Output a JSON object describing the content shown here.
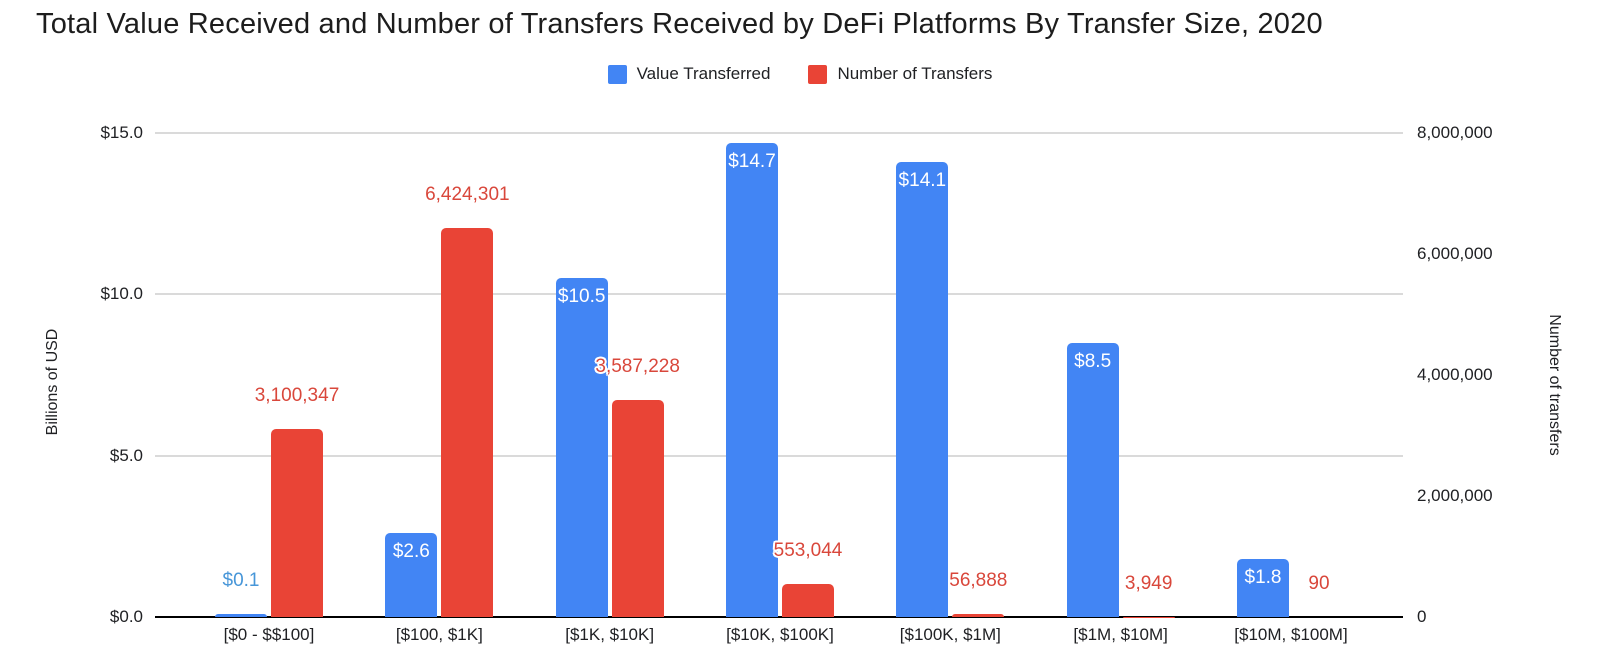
{
  "title": "Total Value Received and Number of Transfers Received by DeFi Platforms By Transfer Size, 2020",
  "chart_data": {
    "type": "bar",
    "title": "Total Value Received and Number of Transfers Received by DeFi Platforms By Transfer Size, 2020",
    "categories": [
      "[$0 - $$100]",
      "[$100, $1K]",
      "[$1K, $10K]",
      "[$10K, $100K]",
      "[$100K, $1M]",
      "[$1M, $10M]",
      "[$10M, $100M]"
    ],
    "series": [
      {
        "name": "Value Transferred",
        "axis": "left",
        "color": "#4285F4",
        "label_color": "#4796D8",
        "values": [
          0.1,
          2.6,
          10.5,
          14.7,
          14.1,
          8.5,
          1.8
        ],
        "labels": [
          "$0.1",
          "$2.6",
          "$10.5",
          "$14.7",
          "$14.1",
          "$8.5",
          "$1.8"
        ]
      },
      {
        "name": "Number of Transfers",
        "axis": "right",
        "color": "#E94436",
        "label_color": "#D9473B",
        "values": [
          3100347,
          6424301,
          3587228,
          553044,
          56888,
          3949,
          90
        ],
        "labels": [
          "3,100,347",
          "6,424,301",
          "3,587,228",
          "553,044",
          "56,888",
          "3,949",
          "90"
        ]
      }
    ],
    "left_axis": {
      "title": "Billions of USD",
      "ticks": [
        "$0.0",
        "$5.0",
        "$10.0",
        "$15.0"
      ],
      "tick_values": [
        0,
        5,
        10,
        15
      ],
      "max": 15
    },
    "right_axis": {
      "title": "Number of transfers",
      "ticks": [
        "0",
        "2,000,000",
        "4,000,000",
        "6,000,000",
        "8,000,000"
      ],
      "tick_values": [
        0,
        2000000,
        4000000,
        6000000,
        8000000
      ],
      "max": 8000000
    },
    "grid": true,
    "legend_position": "top"
  }
}
